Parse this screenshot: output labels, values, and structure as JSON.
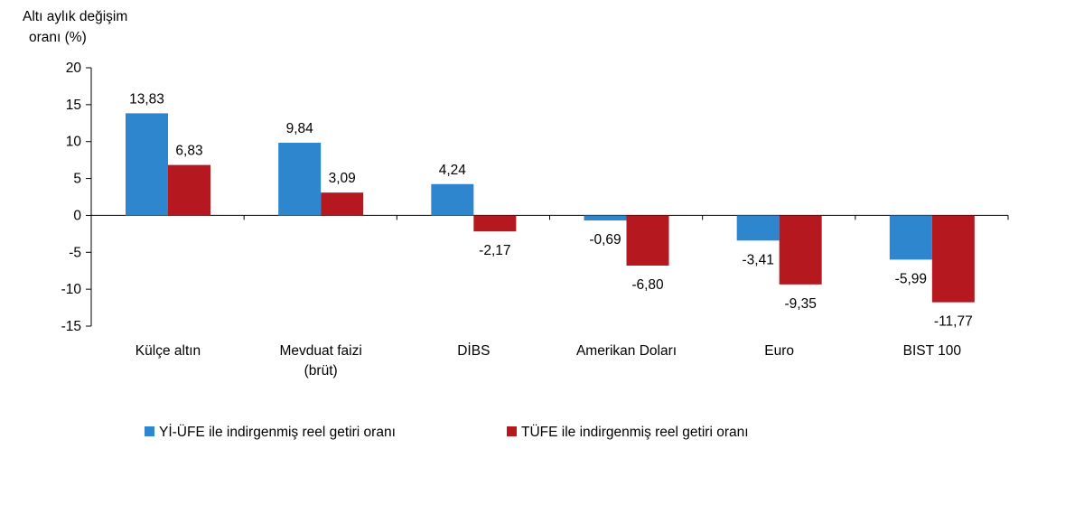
{
  "chart_data": {
    "type": "bar",
    "ylabel_lines": [
      "Altı aylık değişim",
      "oranı (%)"
    ],
    "categories": [
      [
        "Külçe altın"
      ],
      [
        "Mevduat faizi",
        "(brüt)"
      ],
      [
        "DİBS"
      ],
      [
        "Amerikan Doları"
      ],
      [
        "Euro"
      ],
      [
        "BIST 100"
      ]
    ],
    "series": [
      {
        "name": "Yİ-ÜFE ile indirgenmiş reel getiri oranı",
        "color": "#2E86CE",
        "values": [
          13.83,
          9.84,
          4.24,
          -0.69,
          -3.41,
          -5.99
        ],
        "labels": [
          "13,83",
          "9,84",
          "4,24",
          "-0,69",
          "-3,41",
          "-5,99"
        ]
      },
      {
        "name": "TÜFE ile indirgenmiş reel getiri oranı",
        "color": "#B5191F",
        "values": [
          6.83,
          3.09,
          -2.17,
          -6.8,
          -9.35,
          -11.77
        ],
        "labels": [
          "6,83",
          "3,09",
          "-2,17",
          "-6,80",
          "-9,35",
          "-11,77"
        ]
      }
    ],
    "ylim": [
      -15,
      20
    ],
    "yticks": [
      20,
      15,
      10,
      5,
      0,
      -5,
      -10,
      -15
    ],
    "legend_position": "bottom",
    "grid": false
  }
}
